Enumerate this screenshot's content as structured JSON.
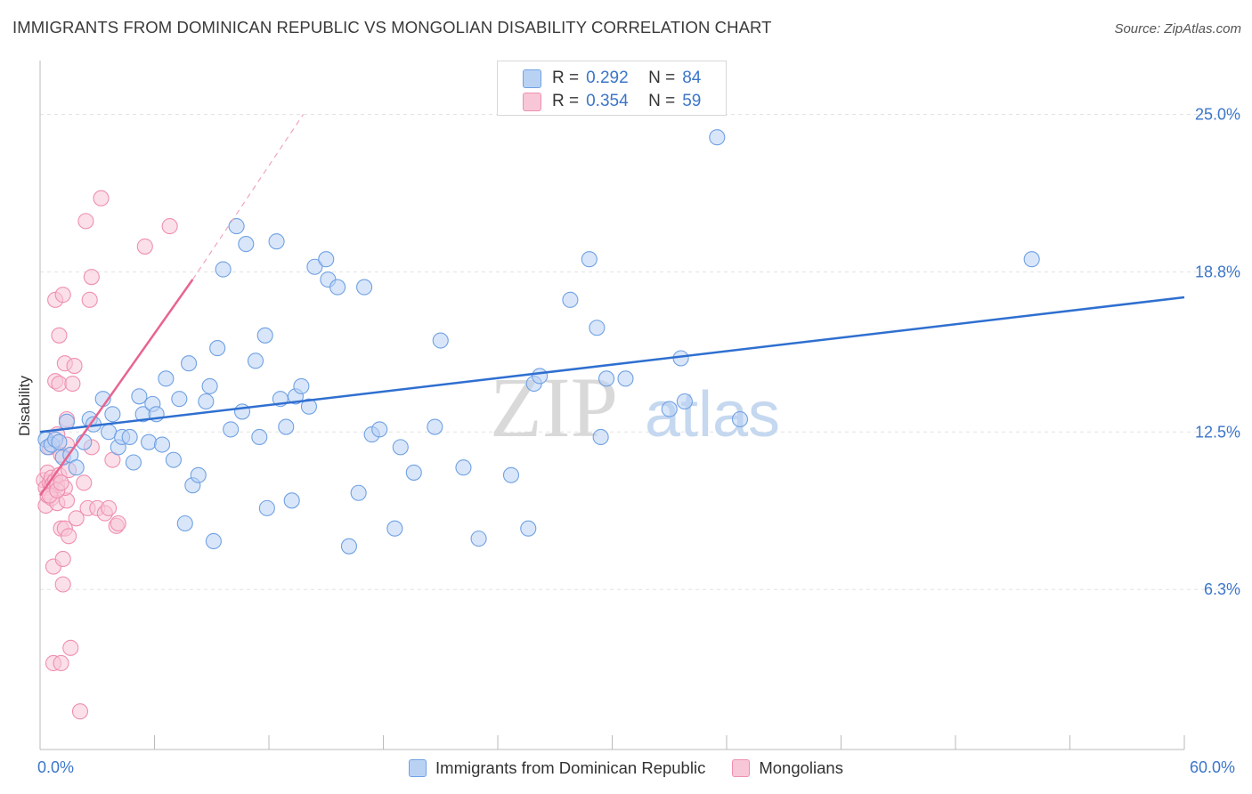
{
  "header": {
    "title": "IMMIGRANTS FROM DOMINICAN REPUBLIC VS MONGOLIAN DISABILITY CORRELATION CHART",
    "source": "Source: ZipAtlas.com"
  },
  "watermark": {
    "zip": "ZIP",
    "atlas": "atlas"
  },
  "legend": {
    "blue": {
      "r_label": "R =",
      "r_value": "0.292",
      "n_label": "N =",
      "n_value": "84"
    },
    "pink": {
      "r_label": "R =",
      "r_value": "0.354",
      "n_label": "N =",
      "n_value": "59"
    }
  },
  "colors": {
    "blue_fill": "#b9d2f4",
    "blue_stroke": "#6fa1e4",
    "blue_line": "#2f6fd0",
    "pink_fill": "#f8c7d7",
    "pink_stroke": "#ef8fb0",
    "pink_line": "#e8648f",
    "label_blue": "#3b76c9"
  },
  "chart_data": {
    "type": "scatter",
    "title": "IMMIGRANTS FROM DOMINICAN REPUBLIC VS MONGOLIAN DISABILITY CORRELATION CHART",
    "xlabel": "",
    "ylabel": "Disability",
    "xlim": [
      0,
      60
    ],
    "ylim": [
      0,
      26.7
    ],
    "x_tick_labels": [
      {
        "value": 0,
        "label": "0.0%"
      },
      {
        "value": 60,
        "label": "60.0%"
      }
    ],
    "y_ticks": [
      {
        "value": 6.3,
        "label": "6.3%"
      },
      {
        "value": 12.5,
        "label": "12.5%"
      },
      {
        "value": 18.8,
        "label": "18.8%"
      },
      {
        "value": 25.0,
        "label": "25.0%"
      }
    ],
    "grid": true,
    "series": [
      {
        "name": "Immigrants from Dominican Republic",
        "color": "blue",
        "trend": {
          "x": [
            0,
            60
          ],
          "y": [
            12.5,
            17.8
          ]
        },
        "points": [
          [
            0.3,
            12.2
          ],
          [
            0.4,
            11.9
          ],
          [
            0.6,
            12.0
          ],
          [
            0.8,
            12.2
          ],
          [
            1.0,
            12.1
          ],
          [
            1.2,
            11.5
          ],
          [
            1.4,
            12.9
          ],
          [
            1.6,
            11.6
          ],
          [
            1.9,
            11.1
          ],
          [
            2.3,
            12.1
          ],
          [
            2.6,
            13.0
          ],
          [
            2.8,
            12.8
          ],
          [
            3.3,
            13.8
          ],
          [
            3.6,
            12.5
          ],
          [
            3.8,
            13.2
          ],
          [
            4.1,
            11.9
          ],
          [
            4.3,
            12.3
          ],
          [
            4.7,
            12.3
          ],
          [
            4.9,
            11.3
          ],
          [
            5.2,
            13.9
          ],
          [
            5.4,
            13.2
          ],
          [
            5.7,
            12.1
          ],
          [
            5.9,
            13.6
          ],
          [
            6.1,
            13.2
          ],
          [
            6.4,
            12.0
          ],
          [
            6.6,
            14.6
          ],
          [
            7.0,
            11.4
          ],
          [
            7.3,
            13.8
          ],
          [
            7.6,
            8.9
          ],
          [
            7.8,
            15.2
          ],
          [
            8.0,
            10.4
          ],
          [
            8.3,
            10.8
          ],
          [
            8.7,
            13.7
          ],
          [
            8.9,
            14.3
          ],
          [
            9.1,
            8.2
          ],
          [
            9.3,
            15.8
          ],
          [
            9.6,
            18.9
          ],
          [
            10.0,
            12.6
          ],
          [
            10.3,
            20.6
          ],
          [
            10.6,
            13.3
          ],
          [
            10.8,
            19.9
          ],
          [
            11.3,
            15.3
          ],
          [
            11.5,
            12.3
          ],
          [
            11.8,
            16.3
          ],
          [
            11.9,
            9.5
          ],
          [
            12.4,
            20.0
          ],
          [
            12.6,
            13.8
          ],
          [
            12.9,
            12.7
          ],
          [
            13.2,
            9.8
          ],
          [
            13.4,
            13.9
          ],
          [
            13.7,
            14.3
          ],
          [
            14.1,
            13.5
          ],
          [
            14.4,
            19.0
          ],
          [
            15.0,
            19.3
          ],
          [
            15.1,
            18.5
          ],
          [
            15.6,
            18.2
          ],
          [
            16.2,
            8.0
          ],
          [
            16.7,
            10.1
          ],
          [
            17.0,
            18.2
          ],
          [
            17.4,
            12.4
          ],
          [
            17.8,
            12.6
          ],
          [
            18.6,
            8.7
          ],
          [
            18.9,
            11.9
          ],
          [
            19.6,
            10.9
          ],
          [
            20.7,
            12.7
          ],
          [
            21.0,
            16.1
          ],
          [
            22.2,
            11.1
          ],
          [
            23.0,
            8.3
          ],
          [
            24.7,
            10.8
          ],
          [
            25.6,
            8.7
          ],
          [
            25.9,
            14.4
          ],
          [
            26.2,
            14.7
          ],
          [
            27.8,
            17.7
          ],
          [
            28.8,
            19.3
          ],
          [
            29.2,
            16.6
          ],
          [
            29.4,
            12.3
          ],
          [
            29.7,
            14.6
          ],
          [
            30.7,
            14.6
          ],
          [
            33.0,
            13.4
          ],
          [
            33.6,
            15.4
          ],
          [
            33.8,
            13.7
          ],
          [
            35.5,
            24.1
          ],
          [
            36.7,
            13.0
          ],
          [
            52.0,
            19.3
          ]
        ]
      },
      {
        "name": "Mongolians",
        "color": "pink",
        "trend": {
          "x": [
            0,
            8.0
          ],
          "y": [
            10.0,
            18.5
          ]
        },
        "trend_extension": {
          "x": [
            8.0,
            13.8
          ],
          "y": [
            18.5,
            25.0
          ]
        },
        "points": [
          [
            0.2,
            10.6
          ],
          [
            0.3,
            10.3
          ],
          [
            0.3,
            9.6
          ],
          [
            0.4,
            10.9
          ],
          [
            0.4,
            10.0
          ],
          [
            0.5,
            10.5
          ],
          [
            0.5,
            11.9
          ],
          [
            0.6,
            10.4
          ],
          [
            0.6,
            10.7
          ],
          [
            0.6,
            9.9
          ],
          [
            0.7,
            10.5
          ],
          [
            0.7,
            7.2
          ],
          [
            0.7,
            3.4
          ],
          [
            0.8,
            10.6
          ],
          [
            0.8,
            17.7
          ],
          [
            0.8,
            14.5
          ],
          [
            0.9,
            10.4
          ],
          [
            0.9,
            12.4
          ],
          [
            0.9,
            9.7
          ],
          [
            1.0,
            16.3
          ],
          [
            1.0,
            14.4
          ],
          [
            1.0,
            10.8
          ],
          [
            1.1,
            3.4
          ],
          [
            1.1,
            8.7
          ],
          [
            1.1,
            11.6
          ],
          [
            1.2,
            17.9
          ],
          [
            1.2,
            7.5
          ],
          [
            1.2,
            6.5
          ],
          [
            1.3,
            15.2
          ],
          [
            1.3,
            8.7
          ],
          [
            1.4,
            9.8
          ],
          [
            1.4,
            13.0
          ],
          [
            1.4,
            12.0
          ],
          [
            1.5,
            11.0
          ],
          [
            1.5,
            8.4
          ],
          [
            1.6,
            4.0
          ],
          [
            1.7,
            14.4
          ],
          [
            1.8,
            15.1
          ],
          [
            1.9,
            9.1
          ],
          [
            2.1,
            1.5
          ],
          [
            2.3,
            10.5
          ],
          [
            2.4,
            20.8
          ],
          [
            2.5,
            9.5
          ],
          [
            2.6,
            17.7
          ],
          [
            2.7,
            18.6
          ],
          [
            2.7,
            11.9
          ],
          [
            3.0,
            9.5
          ],
          [
            3.2,
            21.7
          ],
          [
            3.4,
            9.3
          ],
          [
            3.6,
            9.5
          ],
          [
            3.8,
            11.4
          ],
          [
            4.0,
            8.8
          ],
          [
            4.1,
            8.9
          ],
          [
            5.5,
            19.8
          ],
          [
            6.8,
            20.6
          ],
          [
            1.3,
            10.3
          ],
          [
            0.5,
            10.0
          ],
          [
            0.9,
            10.2
          ],
          [
            1.1,
            10.5
          ]
        ]
      }
    ]
  }
}
